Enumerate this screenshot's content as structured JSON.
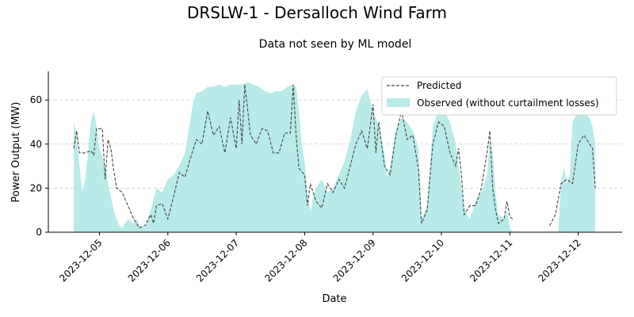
{
  "chart_data": {
    "type": "area",
    "title": "DRSLW-1 - Dersalloch Wind Farm",
    "subtitle": "Data not seen by ML model",
    "xlabel": "Date",
    "ylabel": "Power Output (MW)",
    "xlim": [
      "2023-12-04 15:00",
      "2023-12-12 21:00"
    ],
    "ylim": [
      0,
      73
    ],
    "x_ticks": [
      "2023-12-05",
      "2023-12-06",
      "2023-12-07",
      "2023-12-08",
      "2023-12-09",
      "2023-12-10",
      "2023-12-11",
      "2023-12-12"
    ],
    "y_ticks": [
      0,
      20,
      40,
      60
    ],
    "grid": "y-dashed",
    "legend_position": "top-right",
    "colors": {
      "observed": "#b8eae8",
      "predicted": "#444444"
    },
    "series": [
      {
        "name": "Observed (without curtailment losses)",
        "style": "filled-area",
        "points": [
          [
            "2023-12-04 15:00",
            50
          ],
          [
            "2023-12-04 16:00",
            44
          ],
          [
            "2023-12-04 17:00",
            30
          ],
          [
            "2023-12-04 18:00",
            18
          ],
          [
            "2023-12-04 19:00",
            24
          ],
          [
            "2023-12-04 20:00",
            36
          ],
          [
            "2023-12-04 21:00",
            50
          ],
          [
            "2023-12-04 22:00",
            55
          ],
          [
            "2023-12-04 23:00",
            48
          ],
          [
            "2023-12-05 00:00",
            38
          ],
          [
            "2023-12-05 01:00",
            34
          ],
          [
            "2023-12-05 02:00",
            30
          ],
          [
            "2023-12-05 03:00",
            22
          ],
          [
            "2023-12-05 04:00",
            16
          ],
          [
            "2023-12-05 05:00",
            10
          ],
          [
            "2023-12-05 06:00",
            6
          ],
          [
            "2023-12-05 07:00",
            3
          ],
          [
            "2023-12-05 08:00",
            2
          ],
          [
            "2023-12-05 09:00",
            4
          ],
          [
            "2023-12-05 10:00",
            6
          ],
          [
            "2023-12-05 11:00",
            5
          ],
          [
            "2023-12-05 12:00",
            4
          ],
          [
            "2023-12-05 13:00",
            6
          ],
          [
            "2023-12-05 14:00",
            3
          ],
          [
            "2023-12-05 16:00",
            2
          ],
          [
            "2023-12-05 18:00",
            10
          ],
          [
            "2023-12-05 20:00",
            20
          ],
          [
            "2023-12-05 22:00",
            18
          ],
          [
            "2023-12-06 00:00",
            24
          ],
          [
            "2023-12-06 02:00",
            26
          ],
          [
            "2023-12-06 04:00",
            30
          ],
          [
            "2023-12-06 06:00",
            36
          ],
          [
            "2023-12-06 08:00",
            52
          ],
          [
            "2023-12-06 09:00",
            60
          ],
          [
            "2023-12-06 10:00",
            63
          ],
          [
            "2023-12-06 12:00",
            64
          ],
          [
            "2023-12-06 14:00",
            66
          ],
          [
            "2023-12-06 16:00",
            66
          ],
          [
            "2023-12-06 18:00",
            67
          ],
          [
            "2023-12-06 20:00",
            66
          ],
          [
            "2023-12-06 22:00",
            67
          ],
          [
            "2023-12-07 00:00",
            67
          ],
          [
            "2023-12-07 02:00",
            67
          ],
          [
            "2023-12-07 04:00",
            68
          ],
          [
            "2023-12-07 06:00",
            67
          ],
          [
            "2023-12-07 08:00",
            66
          ],
          [
            "2023-12-07 10:00",
            64
          ],
          [
            "2023-12-07 12:00",
            63
          ],
          [
            "2023-12-07 14:00",
            64
          ],
          [
            "2023-12-07 16:00",
            64
          ],
          [
            "2023-12-07 18:00",
            66
          ],
          [
            "2023-12-07 20:00",
            67
          ],
          [
            "2023-12-07 21:00",
            66
          ],
          [
            "2023-12-07 22:00",
            55
          ],
          [
            "2023-12-07 23:00",
            40
          ],
          [
            "2023-12-08 00:00",
            32
          ],
          [
            "2023-12-08 01:00",
            18
          ],
          [
            "2023-12-08 02:00",
            9
          ],
          [
            "2023-12-08 03:00",
            16
          ],
          [
            "2023-12-08 04:00",
            20
          ],
          [
            "2023-12-08 06:00",
            24
          ],
          [
            "2023-12-08 08:00",
            18
          ],
          [
            "2023-12-08 10:00",
            20
          ],
          [
            "2023-12-08 12:00",
            26
          ],
          [
            "2023-12-08 14:00",
            32
          ],
          [
            "2023-12-08 16:00",
            42
          ],
          [
            "2023-12-08 18:00",
            55
          ],
          [
            "2023-12-08 20:00",
            62
          ],
          [
            "2023-12-08 22:00",
            65
          ],
          [
            "2023-12-09 00:00",
            55
          ],
          [
            "2023-12-09 02:00",
            48
          ],
          [
            "2023-12-09 04:00",
            36
          ],
          [
            "2023-12-09 05:00",
            25
          ],
          [
            "2023-12-09 06:00",
            30
          ],
          [
            "2023-12-09 08:00",
            46
          ],
          [
            "2023-12-09 10:00",
            52
          ],
          [
            "2023-12-09 12:00",
            50
          ],
          [
            "2023-12-09 14:00",
            46
          ],
          [
            "2023-12-09 16:00",
            38
          ],
          [
            "2023-12-09 17:00",
            6
          ],
          [
            "2023-12-09 19:00",
            12
          ],
          [
            "2023-12-09 21:00",
            48
          ],
          [
            "2023-12-09 23:00",
            56
          ],
          [
            "2023-12-10 01:00",
            55
          ],
          [
            "2023-12-10 03:00",
            50
          ],
          [
            "2023-12-10 05:00",
            40
          ],
          [
            "2023-12-10 07:00",
            20
          ],
          [
            "2023-12-10 08:00",
            10
          ],
          [
            "2023-12-10 10:00",
            6
          ],
          [
            "2023-12-10 12:00",
            14
          ],
          [
            "2023-12-10 14:00",
            18
          ],
          [
            "2023-12-10 16:00",
            26
          ],
          [
            "2023-12-10 17:00",
            42
          ],
          [
            "2023-12-10 18:00",
            36
          ],
          [
            "2023-12-10 19:00",
            18
          ],
          [
            "2023-12-10 20:00",
            8
          ],
          [
            "2023-12-10 22:00",
            6
          ],
          [
            "2023-12-10 23:00",
            10
          ],
          [
            "2023-12-11 00:00",
            2
          ],
          [
            "2023-12-11 01:00",
            0
          ],
          [
            "2023-12-11 17:00",
            0
          ],
          [
            "2023-12-11 18:00",
            22
          ],
          [
            "2023-12-11 19:00",
            30
          ],
          [
            "2023-12-11 20:00",
            22
          ],
          [
            "2023-12-11 21:00",
            26
          ],
          [
            "2023-12-11 22:00",
            50
          ],
          [
            "2023-12-12 00:00",
            55
          ],
          [
            "2023-12-12 02:00",
            54
          ],
          [
            "2023-12-12 04:00",
            52
          ],
          [
            "2023-12-12 05:00",
            48
          ],
          [
            "2023-12-12 06:00",
            40
          ]
        ]
      },
      {
        "name": "Predicted",
        "style": "dashed-line",
        "segments": [
          [
            [
              "2023-12-04 15:00",
              38
            ],
            [
              "2023-12-04 16:00",
              46
            ],
            [
              "2023-12-04 17:00",
              36
            ],
            [
              "2023-12-04 19:00",
              36
            ],
            [
              "2023-12-04 21:00",
              37
            ],
            [
              "2023-12-04 22:00",
              35
            ],
            [
              "2023-12-04 23:00",
              47
            ],
            [
              "2023-12-05 01:00",
              47
            ],
            [
              "2023-12-05 02:00",
              24
            ],
            [
              "2023-12-05 03:00",
              42
            ],
            [
              "2023-12-05 04:00",
              38
            ],
            [
              "2023-12-05 05:00",
              28
            ],
            [
              "2023-12-05 06:00",
              20
            ],
            [
              "2023-12-05 08:00",
              18
            ],
            [
              "2023-12-05 10:00",
              12
            ],
            [
              "2023-12-05 12:00",
              6
            ],
            [
              "2023-12-05 14:00",
              2
            ],
            [
              "2023-12-05 16:00",
              3
            ],
            [
              "2023-12-05 18:00",
              8
            ],
            [
              "2023-12-05 19:00",
              4
            ],
            [
              "2023-12-05 20:00",
              12
            ],
            [
              "2023-12-05 22:00",
              13
            ],
            [
              "2023-12-06 00:00",
              6
            ],
            [
              "2023-12-06 02:00",
              16
            ],
            [
              "2023-12-06 04:00",
              27
            ],
            [
              "2023-12-06 06:00",
              25
            ],
            [
              "2023-12-06 08:00",
              34
            ],
            [
              "2023-12-06 10:00",
              42
            ],
            [
              "2023-12-06 12:00",
              40
            ],
            [
              "2023-12-06 14:00",
              55
            ],
            [
              "2023-12-06 16:00",
              44
            ],
            [
              "2023-12-06 18:00",
              48
            ],
            [
              "2023-12-06 20:00",
              36
            ],
            [
              "2023-12-06 22:00",
              52
            ],
            [
              "2023-12-07 00:00",
              38
            ],
            [
              "2023-12-07 01:00",
              60
            ],
            [
              "2023-12-07 02:00",
              40
            ],
            [
              "2023-12-07 03:00",
              67
            ],
            [
              "2023-12-07 05:00",
              44
            ],
            [
              "2023-12-07 07:00",
              40
            ],
            [
              "2023-12-07 09:00",
              47
            ],
            [
              "2023-12-07 11:00",
              46
            ],
            [
              "2023-12-07 13:00",
              36
            ],
            [
              "2023-12-07 15:00",
              36
            ],
            [
              "2023-12-07 17:00",
              45
            ],
            [
              "2023-12-07 19:00",
              45
            ],
            [
              "2023-12-07 20:00",
              67
            ],
            [
              "2023-12-07 21:00",
              44
            ],
            [
              "2023-12-07 22:00",
              29
            ],
            [
              "2023-12-08 00:00",
              26
            ],
            [
              "2023-12-08 01:00",
              12
            ],
            [
              "2023-12-08 02:00",
              22
            ],
            [
              "2023-12-08 04:00",
              14
            ],
            [
              "2023-12-08 06:00",
              11
            ],
            [
              "2023-12-08 08:00",
              22
            ],
            [
              "2023-12-08 10:00",
              18
            ],
            [
              "2023-12-08 12:00",
              24
            ],
            [
              "2023-12-08 14:00",
              20
            ],
            [
              "2023-12-08 16:00",
              30
            ],
            [
              "2023-12-08 18:00",
              40
            ],
            [
              "2023-12-08 20:00",
              46
            ],
            [
              "2023-12-08 22:00",
              38
            ],
            [
              "2023-12-09 00:00",
              58
            ],
            [
              "2023-12-09 01:00",
              36
            ],
            [
              "2023-12-09 02:00",
              50
            ],
            [
              "2023-12-09 04:00",
              30
            ],
            [
              "2023-12-09 06:00",
              26
            ],
            [
              "2023-12-09 08:00",
              44
            ],
            [
              "2023-12-09 10:00",
              55
            ],
            [
              "2023-12-09 12:00",
              42
            ],
            [
              "2023-12-09 14:00",
              44
            ],
            [
              "2023-12-09 16:00",
              28
            ],
            [
              "2023-12-09 17:00",
              4
            ],
            [
              "2023-12-09 19:00",
              10
            ],
            [
              "2023-12-09 21:00",
              40
            ],
            [
              "2023-12-09 23:00",
              50
            ],
            [
              "2023-12-10 01:00",
              48
            ],
            [
              "2023-12-10 03:00",
              36
            ],
            [
              "2023-12-10 05:00",
              30
            ],
            [
              "2023-12-10 06:00",
              38
            ],
            [
              "2023-12-10 07:00",
              26
            ],
            [
              "2023-12-10 08:00",
              8
            ],
            [
              "2023-12-10 10:00",
              12
            ],
            [
              "2023-12-10 12:00",
              12
            ],
            [
              "2023-12-10 14:00",
              20
            ],
            [
              "2023-12-10 16:00",
              36
            ],
            [
              "2023-12-10 17:00",
              46
            ],
            [
              "2023-12-10 18:00",
              20
            ],
            [
              "2023-12-10 19:00",
              10
            ],
            [
              "2023-12-10 20:00",
              4
            ],
            [
              "2023-12-10 22:00",
              6
            ],
            [
              "2023-12-10 23:00",
              14
            ],
            [
              "2023-12-11 00:00",
              7
            ],
            [
              "2023-12-11 01:00",
              6
            ]
          ],
          [
            [
              "2023-12-11 14:00",
              3
            ],
            [
              "2023-12-11 16:00",
              8
            ],
            [
              "2023-12-11 18:00",
              22
            ],
            [
              "2023-12-11 20:00",
              24
            ],
            [
              "2023-12-11 22:00",
              22
            ],
            [
              "2023-12-12 00:00",
              40
            ],
            [
              "2023-12-12 02:00",
              44
            ],
            [
              "2023-12-12 04:00",
              40
            ],
            [
              "2023-12-12 05:00",
              38
            ],
            [
              "2023-12-12 06:00",
              20
            ]
          ]
        ]
      }
    ]
  }
}
